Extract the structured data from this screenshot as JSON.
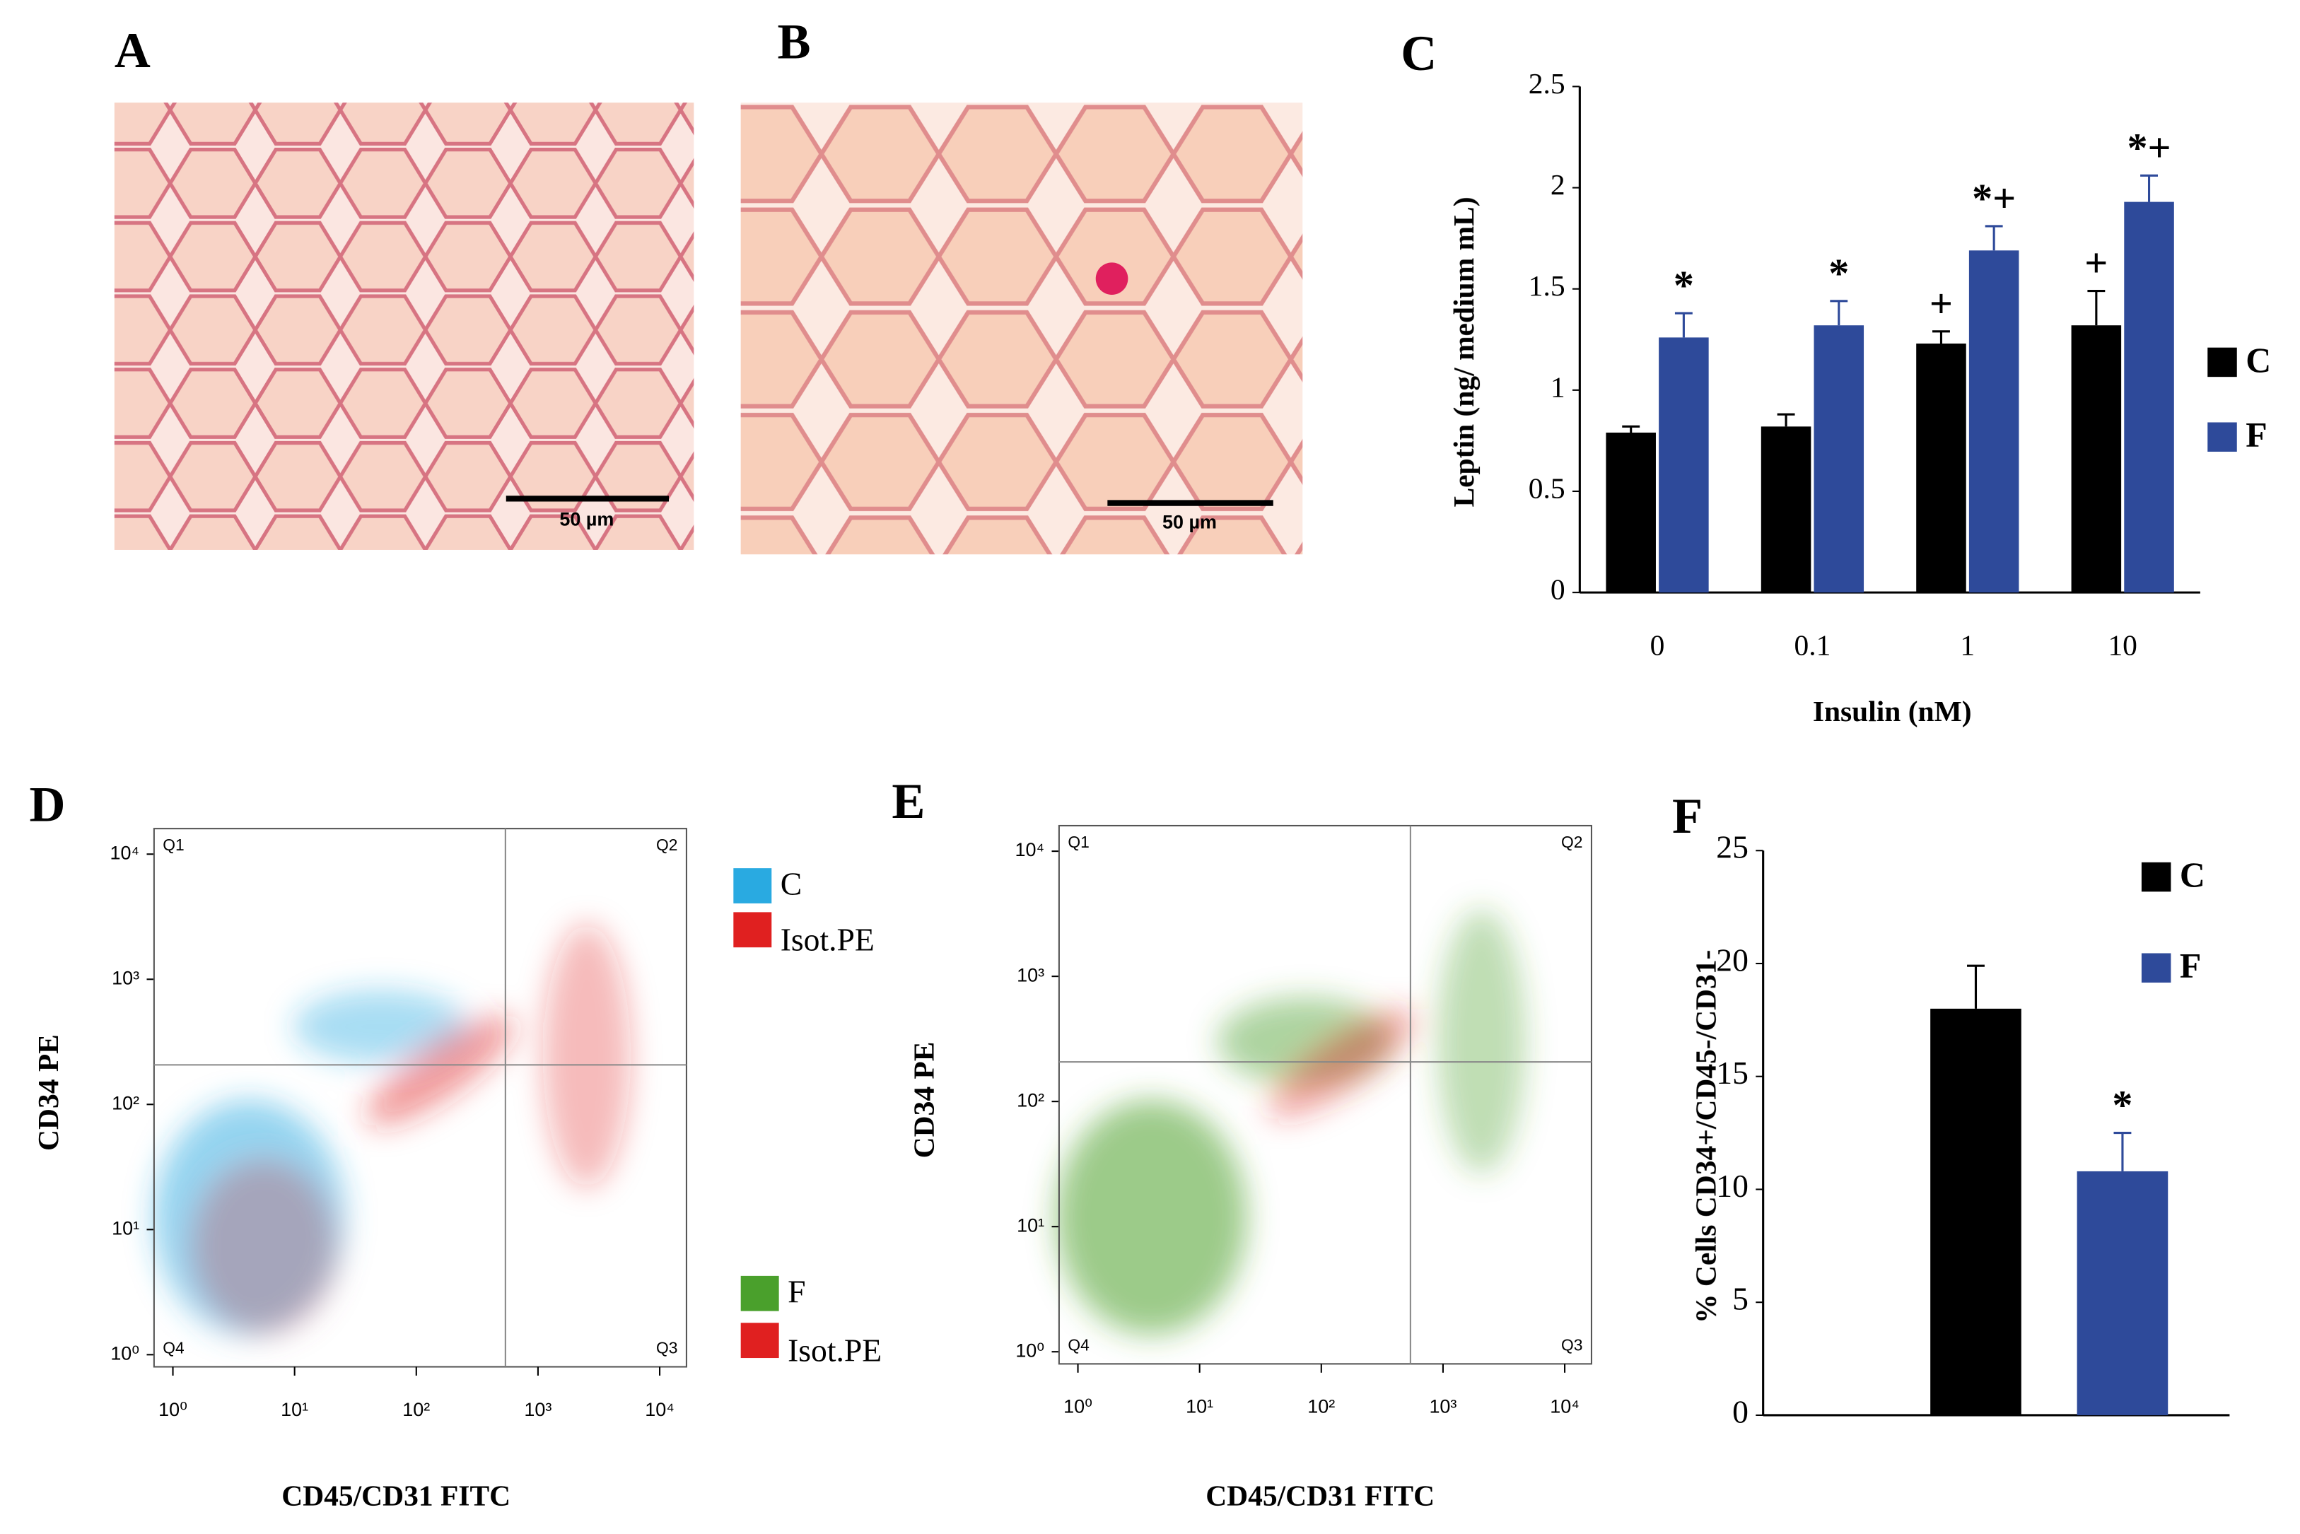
{
  "panel_labels": [
    "A",
    "B",
    "C",
    "D",
    "E",
    "F"
  ],
  "micrographs": [
    {
      "scale_bar": "50 µm"
    },
    {
      "scale_bar": "50 µm"
    }
  ],
  "chart_data": [
    {
      "type": "bar",
      "categories": [
        "0",
        "0.1",
        "1",
        "10"
      ],
      "series": [
        {
          "name": "C",
          "color": "#000000",
          "values": [
            0.79,
            0.82,
            1.23,
            1.32
          ],
          "errors": [
            0.03,
            0.06,
            0.06,
            0.17
          ],
          "annotations": [
            null,
            null,
            "+",
            "+"
          ]
        },
        {
          "name": "F",
          "color": "#2e4a9a",
          "values": [
            1.26,
            1.32,
            1.69,
            1.93
          ],
          "errors": [
            0.12,
            0.12,
            0.12,
            0.13
          ],
          "annotations": [
            "*",
            "*",
            "*+",
            "*+"
          ]
        }
      ],
      "ylim": [
        0,
        2.5
      ],
      "yticks": [
        0,
        0.5,
        1,
        1.5,
        2,
        2.5
      ],
      "ylabel": "Leptin (ng/ medium mL)",
      "xlabel": "Insulin (nM)"
    },
    {
      "type": "flow",
      "xlabel": "CD45/CD31 FITC",
      "ylabel": "CD34 PE",
      "xscale": "log",
      "yscale": "log",
      "xlim": [
        0.7,
        16600
      ],
      "ylim": [
        0.8,
        16000
      ],
      "xticks": [
        {
          "value": 1,
          "label": "10⁰"
        },
        {
          "value": 10,
          "label": "10¹"
        },
        {
          "value": 100,
          "label": "10²"
        },
        {
          "value": 1000,
          "label": "10³"
        },
        {
          "value": 10000,
          "label": "10⁴"
        }
      ],
      "yticks": [
        {
          "value": 1,
          "label": "10⁰"
        },
        {
          "value": 10,
          "label": "10¹"
        },
        {
          "value": 100,
          "label": "10²"
        },
        {
          "value": 1000,
          "label": "10³"
        },
        {
          "value": 10000,
          "label": "10⁴"
        }
      ],
      "gate_x": 540,
      "gate_y": 207,
      "quadrants": [
        "Q1",
        "Q2",
        "Q3",
        "Q4"
      ],
      "series": [
        {
          "name": "C",
          "color": "#29aae1"
        },
        {
          "name": "Isot.PE",
          "color": "#e02020"
        }
      ]
    },
    {
      "type": "flow",
      "xlabel": "CD45/CD31 FITC",
      "ylabel": "CD34 PE",
      "xscale": "log",
      "yscale": "log",
      "xlim": [
        0.7,
        16600
      ],
      "ylim": [
        0.8,
        16000
      ],
      "xticks": [
        {
          "value": 1,
          "label": "10⁰"
        },
        {
          "value": 10,
          "label": "10¹"
        },
        {
          "value": 100,
          "label": "10²"
        },
        {
          "value": 1000,
          "label": "10³"
        },
        {
          "value": 10000,
          "label": "10⁴"
        }
      ],
      "yticks": [
        {
          "value": 1,
          "label": "10⁰"
        },
        {
          "value": 10,
          "label": "10¹"
        },
        {
          "value": 100,
          "label": "10²"
        },
        {
          "value": 1000,
          "label": "10³"
        },
        {
          "value": 10000,
          "label": "10⁴"
        }
      ],
      "gate_x": 540,
      "gate_y": 207,
      "quadrants": [
        "Q1",
        "Q2",
        "Q3",
        "Q4"
      ],
      "series": [
        {
          "name": "F",
          "color": "#4aa02c"
        },
        {
          "name": "Isot.PE",
          "color": "#e02020"
        }
      ]
    },
    {
      "type": "bar",
      "series": [
        {
          "name": "C",
          "color": "#000000",
          "values": [
            18
          ],
          "errors": [
            1.9
          ],
          "annotations": [
            null
          ]
        },
        {
          "name": "F",
          "color": "#2e4a9a",
          "values": [
            10.8
          ],
          "errors": [
            1.7
          ],
          "annotations": [
            "*"
          ]
        }
      ],
      "ylim": [
        0,
        25
      ],
      "yticks": [
        0,
        5,
        10,
        15,
        20,
        25
      ],
      "ylabel": "% Cells CD34+/CD45-/CD31-"
    }
  ]
}
